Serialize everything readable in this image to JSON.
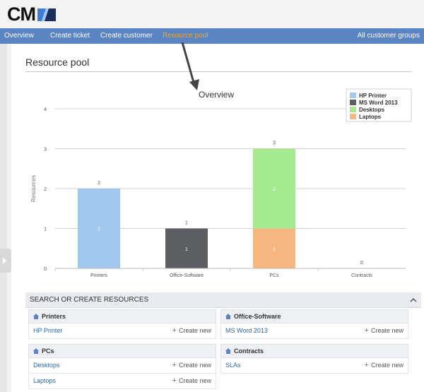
{
  "logo": {
    "text": "CM",
    "mark_colors": {
      "blue": "#3b7dd8",
      "dark": "#1c2f5a",
      "light": "#a9c8f0"
    }
  },
  "nav": {
    "items": [
      {
        "label": "Overview"
      },
      {
        "label": "Create ticket"
      },
      {
        "label": "Create customer"
      },
      {
        "label": "Resource pool",
        "active": true
      }
    ],
    "right_label": "All customer groups"
  },
  "page": {
    "title": "Resource pool"
  },
  "chart_data": {
    "type": "bar",
    "stacked": true,
    "title": "Overview",
    "xlabel": "",
    "ylabel": "Resources",
    "ylim": [
      0,
      4
    ],
    "yticks": [
      "0",
      "1",
      "2",
      "3",
      "4"
    ],
    "grid": true,
    "legend_position": "top-right",
    "categories": [
      "Printers",
      "Office-Software",
      "PCs",
      "Contracts"
    ],
    "series": [
      {
        "name": "HP Printer",
        "color": "#a3c8ef",
        "values": [
          2,
          0,
          0,
          0
        ]
      },
      {
        "name": "MS Word 2013",
        "color": "#5d5e62",
        "values": [
          0,
          1,
          0,
          0
        ]
      },
      {
        "name": "Desktops",
        "color": "#a6ea8f",
        "values": [
          0,
          0,
          2,
          0
        ]
      },
      {
        "name": "Laptops",
        "color": "#f6b680",
        "values": [
          0,
          0,
          1,
          0
        ]
      }
    ],
    "totals": [
      "2",
      "1",
      "3",
      "0"
    ]
  },
  "search": {
    "heading": "SEARCH OR CREATE RESOURCES",
    "groups": [
      {
        "name": "Printers",
        "items": [
          "HP Printer"
        ]
      },
      {
        "name": "Office-Software",
        "items": [
          "MS Word 2013"
        ]
      },
      {
        "name": "PCs",
        "items": [
          "Desktops",
          "Laptops"
        ]
      },
      {
        "name": "Contracts",
        "items": [
          "SLAs"
        ]
      }
    ],
    "create_label": "Create new"
  }
}
